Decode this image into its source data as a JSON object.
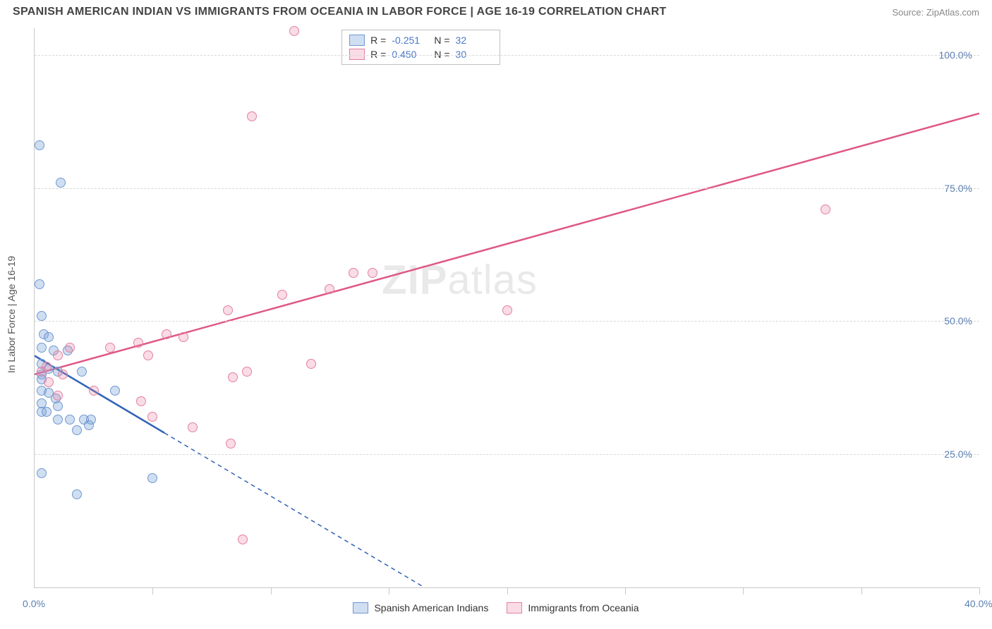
{
  "title": "SPANISH AMERICAN INDIAN VS IMMIGRANTS FROM OCEANIA IN LABOR FORCE | AGE 16-19 CORRELATION CHART",
  "source": "Source: ZipAtlas.com",
  "ylabel": "In Labor Force | Age 16-19",
  "watermark_bold": "ZIP",
  "watermark_rest": "atlas",
  "chart": {
    "type": "scatter",
    "xlim": [
      0.0,
      40.0
    ],
    "ylim": [
      0.0,
      105.0
    ],
    "xtick_marks": [
      5,
      10,
      15,
      20,
      25,
      30,
      35,
      40
    ],
    "xtick_labels": [
      {
        "v": 0.0,
        "text": "0.0%"
      },
      {
        "v": 40.0,
        "text": "40.0%"
      }
    ],
    "ytick_labels": [
      {
        "v": 25.0,
        "text": "25.0%"
      },
      {
        "v": 50.0,
        "text": "50.0%"
      },
      {
        "v": 75.0,
        "text": "75.0%"
      },
      {
        "v": 100.0,
        "text": "100.0%"
      }
    ],
    "marker_radius": 7,
    "background_color": "#ffffff",
    "grid_color": "#d8d8d8",
    "series": [
      {
        "name": "Spanish American Indians",
        "fill": "rgba(120,160,215,0.35)",
        "stroke": "#6f99d2",
        "line_color": "#2f62b6",
        "points": [
          [
            0.2,
            83.0
          ],
          [
            1.1,
            76.0
          ],
          [
            0.2,
            57.0
          ],
          [
            0.3,
            51.0
          ],
          [
            0.4,
            47.5
          ],
          [
            0.6,
            47.0
          ],
          [
            0.3,
            45.0
          ],
          [
            0.8,
            44.5
          ],
          [
            1.4,
            44.5
          ],
          [
            0.3,
            42.0
          ],
          [
            0.6,
            41.0
          ],
          [
            0.3,
            40.0
          ],
          [
            0.3,
            39.0
          ],
          [
            1.0,
            40.5
          ],
          [
            2.0,
            40.5
          ],
          [
            0.3,
            37.0
          ],
          [
            0.6,
            36.5
          ],
          [
            0.9,
            35.5
          ],
          [
            0.3,
            34.5
          ],
          [
            1.0,
            34.0
          ],
          [
            0.3,
            33.0
          ],
          [
            0.5,
            33.0
          ],
          [
            1.0,
            31.5
          ],
          [
            1.5,
            31.5
          ],
          [
            2.1,
            31.5
          ],
          [
            2.4,
            31.5
          ],
          [
            2.3,
            30.5
          ],
          [
            1.8,
            29.5
          ],
          [
            0.3,
            21.5
          ],
          [
            1.8,
            17.5
          ],
          [
            5.0,
            20.5
          ],
          [
            3.4,
            37.0
          ]
        ],
        "trend": {
          "x1": 0.0,
          "y1": 43.5,
          "x2": 5.5,
          "y2": 29.0,
          "solid": true
        },
        "trend_ext": {
          "x1": 5.5,
          "y1": 29.0,
          "x2": 16.5,
          "y2": 0.0
        }
      },
      {
        "name": "Immigrants from Oceania",
        "fill": "rgba(235,130,165,0.28)",
        "stroke": "#e2809f",
        "line_color": "#df5886",
        "points": [
          [
            11.0,
            104.5
          ],
          [
            9.2,
            88.5
          ],
          [
            33.5,
            71.0
          ],
          [
            13.5,
            59.0
          ],
          [
            14.3,
            59.0
          ],
          [
            12.5,
            56.0
          ],
          [
            10.5,
            55.0
          ],
          [
            8.2,
            52.0
          ],
          [
            20.0,
            52.0
          ],
          [
            5.6,
            47.5
          ],
          [
            6.3,
            47.0
          ],
          [
            4.4,
            46.0
          ],
          [
            3.2,
            45.0
          ],
          [
            1.5,
            45.0
          ],
          [
            1.0,
            43.5
          ],
          [
            4.8,
            43.5
          ],
          [
            0.5,
            41.5
          ],
          [
            1.2,
            40.0
          ],
          [
            0.6,
            38.5
          ],
          [
            9.0,
            40.5
          ],
          [
            11.7,
            42.0
          ],
          [
            8.4,
            39.5
          ],
          [
            2.5,
            37.0
          ],
          [
            1.0,
            36.0
          ],
          [
            4.5,
            35.0
          ],
          [
            5.0,
            32.0
          ],
          [
            6.7,
            30.0
          ],
          [
            8.3,
            27.0
          ],
          [
            8.8,
            9.0
          ],
          [
            0.3,
            40.5
          ]
        ],
        "trend": {
          "x1": 0.0,
          "y1": 40.0,
          "x2": 40.0,
          "y2": 89.0,
          "solid": true
        }
      }
    ]
  },
  "legend_top": {
    "rows": [
      {
        "swatch_fill": "rgba(120,160,215,0.35)",
        "swatch_stroke": "#6f99d2",
        "r_label": "R =",
        "r_val": "-0.251",
        "n_label": "N =",
        "n_val": "32"
      },
      {
        "swatch_fill": "rgba(235,130,165,0.28)",
        "swatch_stroke": "#e2809f",
        "r_label": "R =",
        "r_val": "0.450",
        "n_label": "N =",
        "n_val": "30"
      }
    ]
  },
  "legend_bottom": {
    "items": [
      {
        "swatch_fill": "rgba(120,160,215,0.35)",
        "swatch_stroke": "#6f99d2",
        "label": "Spanish American Indians"
      },
      {
        "swatch_fill": "rgba(235,130,165,0.28)",
        "swatch_stroke": "#e2809f",
        "label": "Immigrants from Oceania"
      }
    ]
  }
}
